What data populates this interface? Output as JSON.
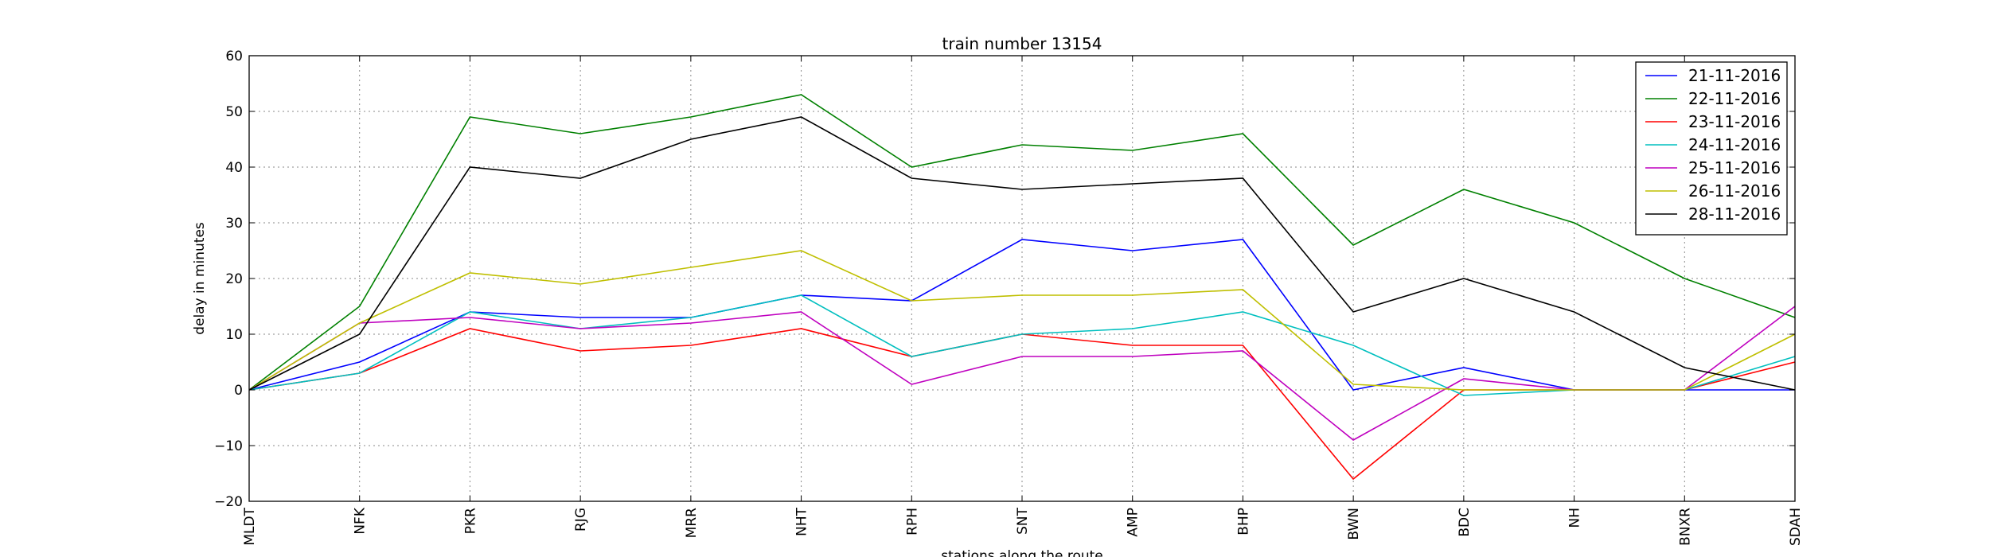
{
  "chart_data": {
    "type": "line",
    "title": "train number 13154",
    "xlabel": "stations along the route",
    "ylabel": "delay in minutes",
    "categories": [
      "MLDT",
      "NFK",
      "PKR",
      "RJG",
      "MRR",
      "NHT",
      "RPH",
      "SNT",
      "AMP",
      "BHP",
      "BWN",
      "BDC",
      "NH",
      "BNXR",
      "SDAH"
    ],
    "ylim": [
      -20,
      60
    ],
    "yticks": [
      -20,
      -10,
      0,
      10,
      20,
      30,
      40,
      50,
      60
    ],
    "grid": true,
    "legend_position": "top-right",
    "series": [
      {
        "name": "21-11-2016",
        "color": "#0000ff",
        "values": [
          0,
          5,
          14,
          13,
          13,
          17,
          16,
          27,
          25,
          27,
          0,
          4,
          0,
          0,
          0
        ]
      },
      {
        "name": "22-11-2016",
        "color": "#008000",
        "values": [
          0,
          15,
          49,
          46,
          49,
          53,
          40,
          44,
          43,
          46,
          26,
          36,
          30,
          20,
          13
        ]
      },
      {
        "name": "23-11-2016",
        "color": "#ff0000",
        "values": [
          0,
          3,
          11,
          7,
          8,
          11,
          6,
          10,
          8,
          8,
          -16,
          0,
          0,
          0,
          5
        ]
      },
      {
        "name": "24-11-2016",
        "color": "#00bfbf",
        "values": [
          0,
          3,
          14,
          11,
          13,
          17,
          6,
          10,
          11,
          14,
          8,
          -1,
          0,
          0,
          6
        ]
      },
      {
        "name": "25-11-2016",
        "color": "#bf00bf",
        "values": [
          0,
          12,
          13,
          11,
          12,
          14,
          1,
          6,
          6,
          7,
          -9,
          2,
          0,
          0,
          15
        ]
      },
      {
        "name": "26-11-2016",
        "color": "#bfbf00",
        "values": [
          0,
          12,
          21,
          19,
          22,
          25,
          16,
          17,
          17,
          18,
          1,
          0,
          0,
          0,
          10
        ]
      },
      {
        "name": "28-11-2016",
        "color": "#000000",
        "values": [
          0,
          10,
          40,
          38,
          45,
          49,
          38,
          36,
          37,
          38,
          14,
          20,
          14,
          4,
          0
        ]
      }
    ]
  }
}
